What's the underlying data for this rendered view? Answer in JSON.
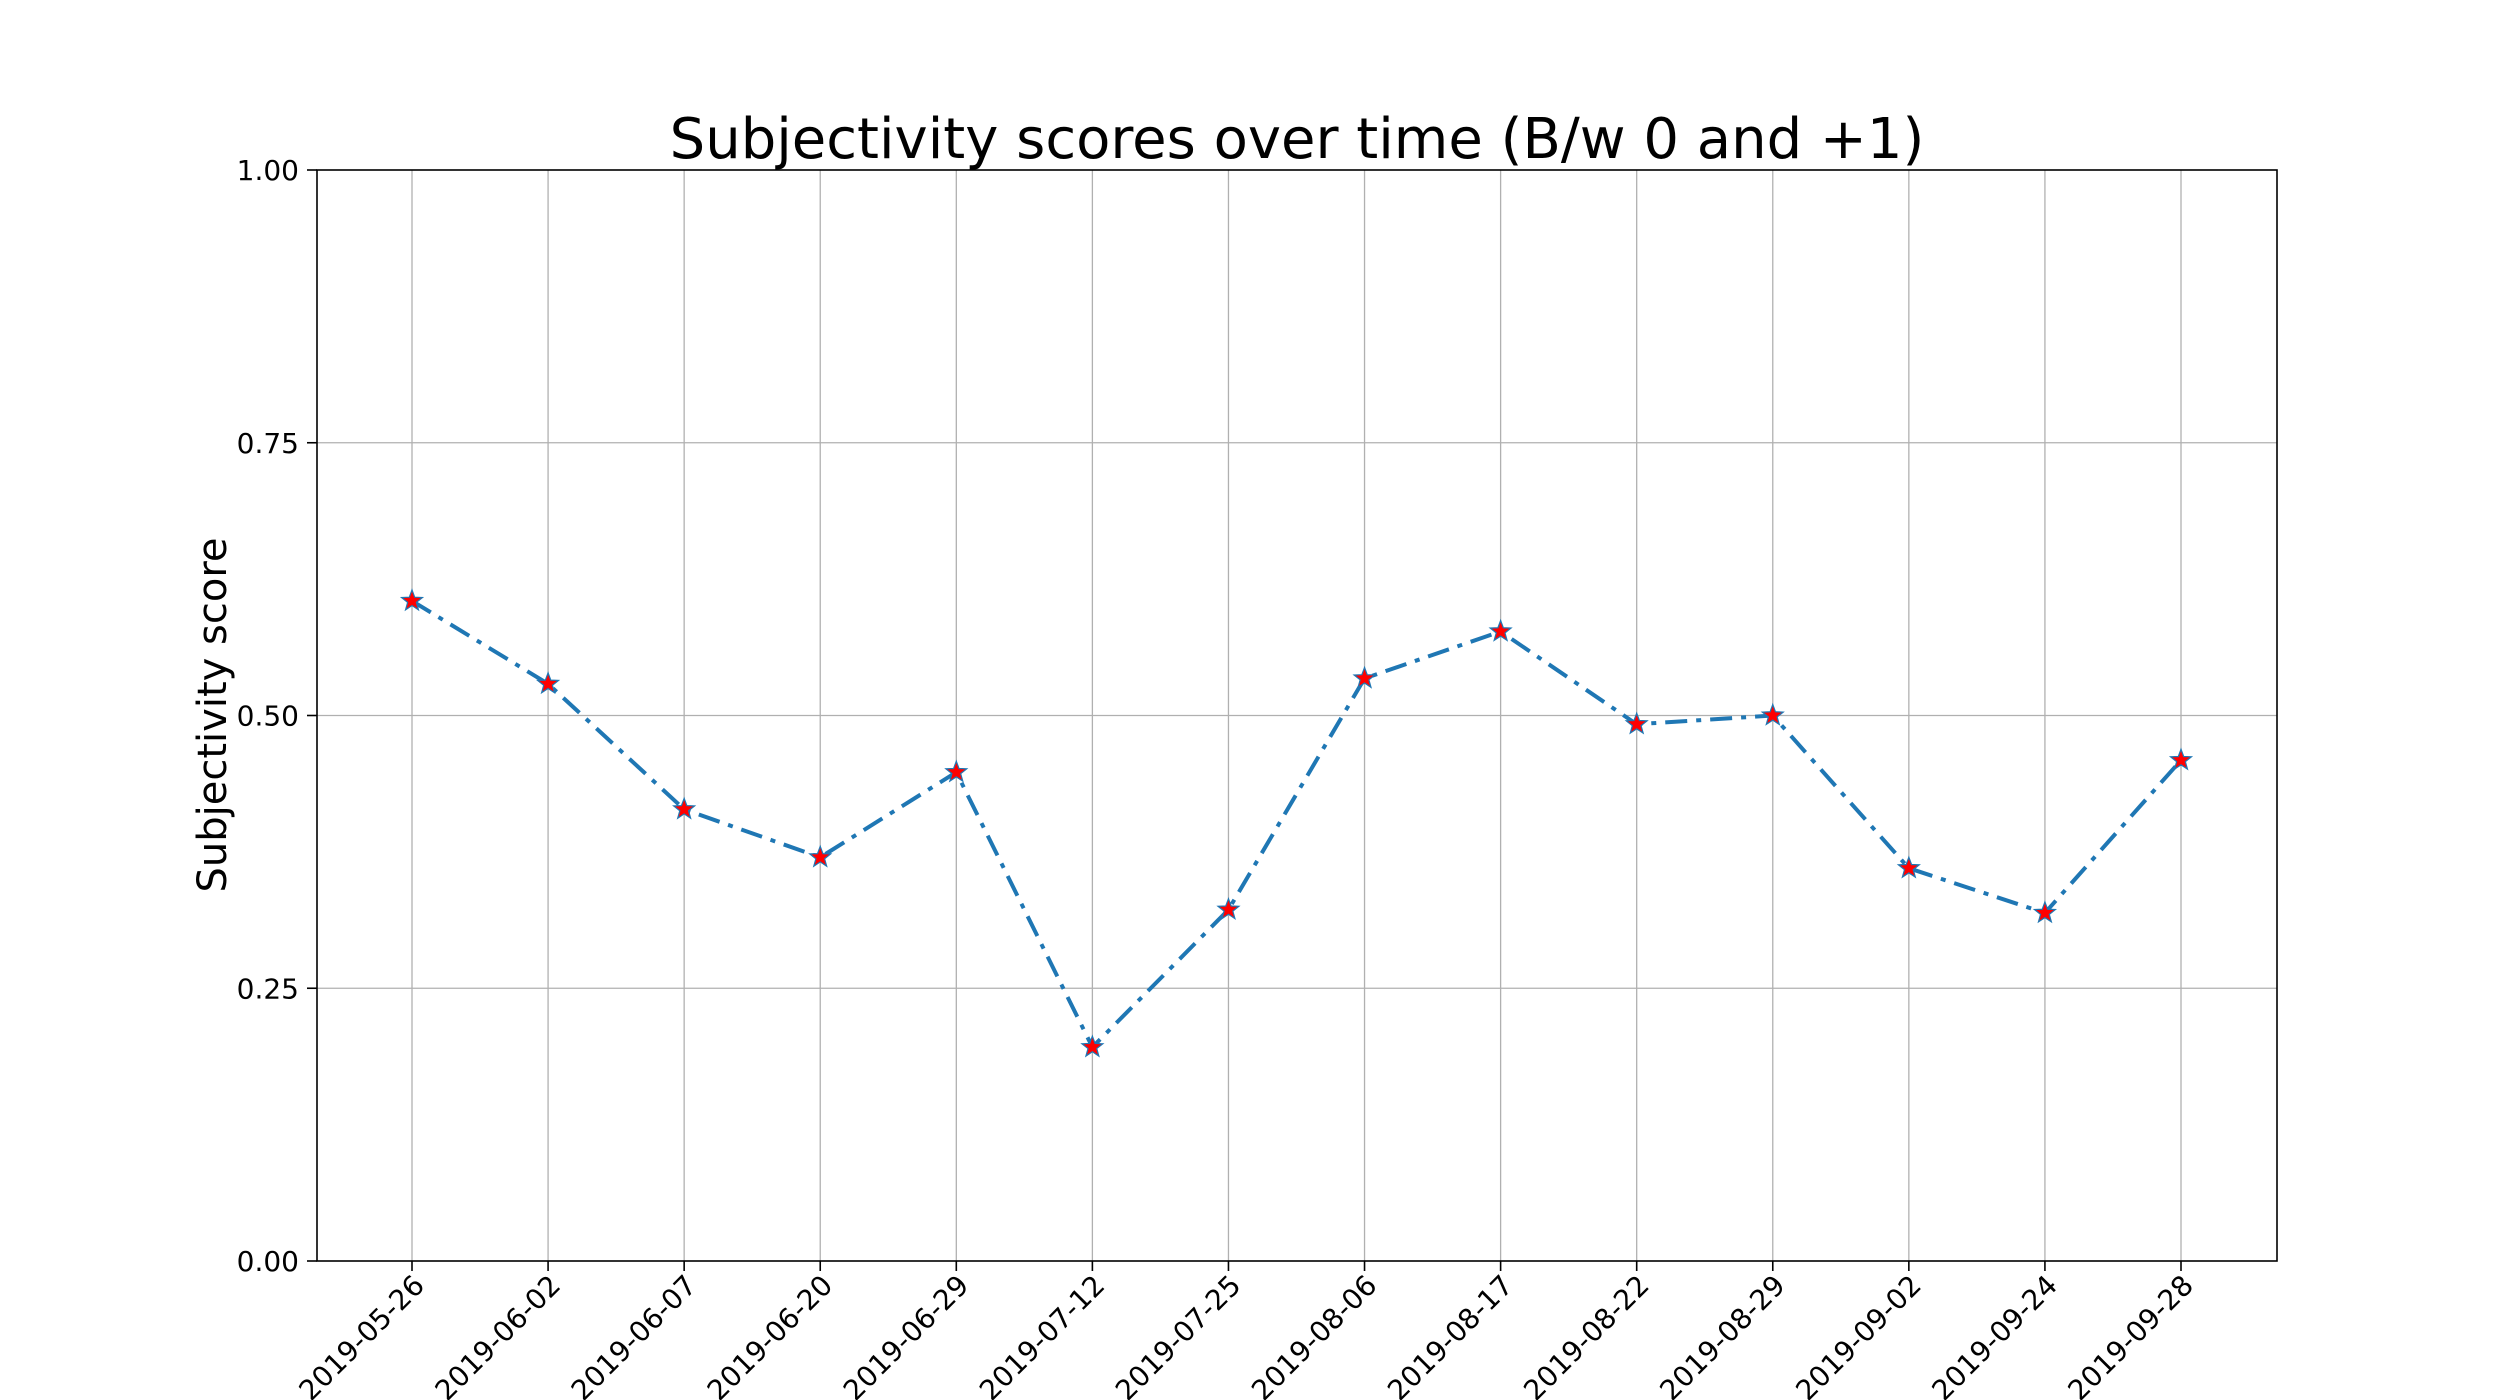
{
  "chart_data": {
    "type": "line",
    "title": "Subjectivity scores over time (B/w 0 and +1)",
    "xlabel": "",
    "ylabel": "Subjectivity score",
    "categories": [
      "2019-05-26",
      "2019-06-02",
      "2019-06-07",
      "2019-06-20",
      "2019-06-29",
      "2019-07-12",
      "2019-07-25",
      "2019-08-06",
      "2019-08-17",
      "2019-08-22",
      "2019-08-29",
      "2019-09-02",
      "2019-09-24",
      "2019-09-28"
    ],
    "series": [
      {
        "values": [
          0.605,
          0.529,
          0.414,
          0.37,
          0.448,
          0.196,
          0.322,
          0.534,
          0.577,
          0.492,
          0.5,
          0.36,
          0.319,
          0.459
        ]
      }
    ],
    "ylim": [
      0,
      1
    ],
    "yticks": [
      "0.00",
      "0.25",
      "0.50",
      "0.75",
      "1.00"
    ],
    "grid": true,
    "line_style": "dash-dot",
    "line_color": "#1f77b4",
    "marker": "star",
    "marker_color": "#ff0000"
  }
}
